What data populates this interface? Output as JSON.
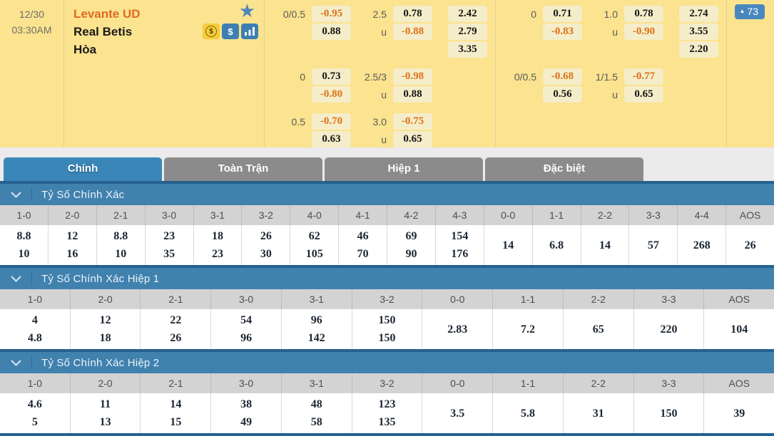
{
  "colors": {
    "panel_yellow": "#fbe38f",
    "odds_box": "#f5edc9",
    "negative_orange": "#dd7117",
    "home_team_orange": "#e06a25",
    "active_tab_blue": "#3a86b8",
    "inactive_tab_gray": "#8b8b8b",
    "section_header_blue": "#4081ae",
    "separator_navy": "#26618f"
  },
  "match": {
    "date": "12/30",
    "time": "03:30AM",
    "home": "Levante UD",
    "away": "Real Betis",
    "draw": "Hòa",
    "live_count": "73"
  },
  "icons": {
    "star": "★",
    "coin": "$",
    "cash": "$",
    "arrow_up": "▲"
  },
  "odds": {
    "left": [
      [
        {
          "hl": "0/0.5",
          "ho": "-0.95",
          "tl": "2.5",
          "to": "0.78",
          "x": "2.42"
        },
        {
          "hl": "",
          "ho": "0.88",
          "tl": "u",
          "to": "-0.88",
          "x": "2.79"
        },
        {
          "hl": "",
          "ho": "",
          "tl": "",
          "to": "",
          "x": "3.35"
        }
      ],
      [
        {
          "hl": "0",
          "ho": "0.73",
          "tl": "2.5/3",
          "to": "-0.98",
          "x": ""
        },
        {
          "hl": "",
          "ho": "-0.80",
          "tl": "u",
          "to": "0.88",
          "x": ""
        }
      ],
      [
        {
          "hl": "0.5",
          "ho": "-0.70",
          "tl": "3.0",
          "to": "-0.75",
          "x": ""
        },
        {
          "hl": "",
          "ho": "0.63",
          "tl": "u",
          "to": "0.65",
          "x": ""
        }
      ]
    ],
    "right": [
      [
        {
          "hl": "0",
          "ho": "0.71",
          "tl": "1.0",
          "to": "0.78",
          "x": "2.74"
        },
        {
          "hl": "",
          "ho": "-0.83",
          "tl": "u",
          "to": "-0.90",
          "x": "3.55"
        },
        {
          "hl": "",
          "ho": "",
          "tl": "",
          "to": "",
          "x": "2.20"
        }
      ],
      [
        {
          "hl": "0/0.5",
          "ho": "-0.68",
          "tl": "1/1.5",
          "to": "-0.77",
          "x": ""
        },
        {
          "hl": "",
          "ho": "0.56",
          "tl": "u",
          "to": "0.65",
          "x": ""
        }
      ]
    ]
  },
  "tabs": [
    {
      "label": "Chính",
      "active": true
    },
    {
      "label": "Toàn Trận",
      "active": false
    },
    {
      "label": "Hiệp 1",
      "active": false
    },
    {
      "label": "Đặc biệt",
      "active": false
    }
  ],
  "sections": [
    {
      "title": "Tỷ Số Chính Xác",
      "columns": [
        {
          "score": "1-0",
          "values": [
            "8.8",
            "10"
          ]
        },
        {
          "score": "2-0",
          "values": [
            "12",
            "16"
          ]
        },
        {
          "score": "2-1",
          "values": [
            "8.8",
            "10"
          ]
        },
        {
          "score": "3-0",
          "values": [
            "23",
            "35"
          ]
        },
        {
          "score": "3-1",
          "values": [
            "18",
            "23"
          ]
        },
        {
          "score": "3-2",
          "values": [
            "26",
            "30"
          ]
        },
        {
          "score": "4-0",
          "values": [
            "62",
            "105"
          ]
        },
        {
          "score": "4-1",
          "values": [
            "46",
            "70"
          ]
        },
        {
          "score": "4-2",
          "values": [
            "69",
            "90"
          ]
        },
        {
          "score": "4-3",
          "values": [
            "154",
            "176"
          ]
        },
        {
          "score": "0-0",
          "values": [
            "14"
          ]
        },
        {
          "score": "1-1",
          "values": [
            "6.8"
          ]
        },
        {
          "score": "2-2",
          "values": [
            "14"
          ]
        },
        {
          "score": "3-3",
          "values": [
            "57"
          ]
        },
        {
          "score": "4-4",
          "values": [
            "268"
          ]
        },
        {
          "score": "AOS",
          "values": [
            "26"
          ]
        }
      ]
    },
    {
      "title": "Tỷ Số Chính Xác Hiệp 1",
      "columns": [
        {
          "score": "1-0",
          "values": [
            "4",
            "4.8"
          ]
        },
        {
          "score": "2-0",
          "values": [
            "12",
            "18"
          ]
        },
        {
          "score": "2-1",
          "values": [
            "22",
            "26"
          ]
        },
        {
          "score": "3-0",
          "values": [
            "54",
            "96"
          ]
        },
        {
          "score": "3-1",
          "values": [
            "96",
            "142"
          ]
        },
        {
          "score": "3-2",
          "values": [
            "150",
            "150"
          ]
        },
        {
          "score": "0-0",
          "values": [
            "2.83"
          ]
        },
        {
          "score": "1-1",
          "values": [
            "7.2"
          ]
        },
        {
          "score": "2-2",
          "values": [
            "65"
          ]
        },
        {
          "score": "3-3",
          "values": [
            "220"
          ]
        },
        {
          "score": "AOS",
          "values": [
            "104"
          ]
        }
      ]
    },
    {
      "title": "Tỷ Số Chính Xác Hiệp 2",
      "columns": [
        {
          "score": "1-0",
          "values": [
            "4.6",
            "5"
          ]
        },
        {
          "score": "2-0",
          "values": [
            "11",
            "13"
          ]
        },
        {
          "score": "2-1",
          "values": [
            "14",
            "15"
          ]
        },
        {
          "score": "3-0",
          "values": [
            "38",
            "49"
          ]
        },
        {
          "score": "3-1",
          "values": [
            "48",
            "58"
          ]
        },
        {
          "score": "3-2",
          "values": [
            "123",
            "135"
          ]
        },
        {
          "score": "0-0",
          "values": [
            "3.5"
          ]
        },
        {
          "score": "1-1",
          "values": [
            "5.8"
          ]
        },
        {
          "score": "2-2",
          "values": [
            "31"
          ]
        },
        {
          "score": "3-3",
          "values": [
            "150"
          ]
        },
        {
          "score": "AOS",
          "values": [
            "39"
          ]
        }
      ]
    }
  ]
}
